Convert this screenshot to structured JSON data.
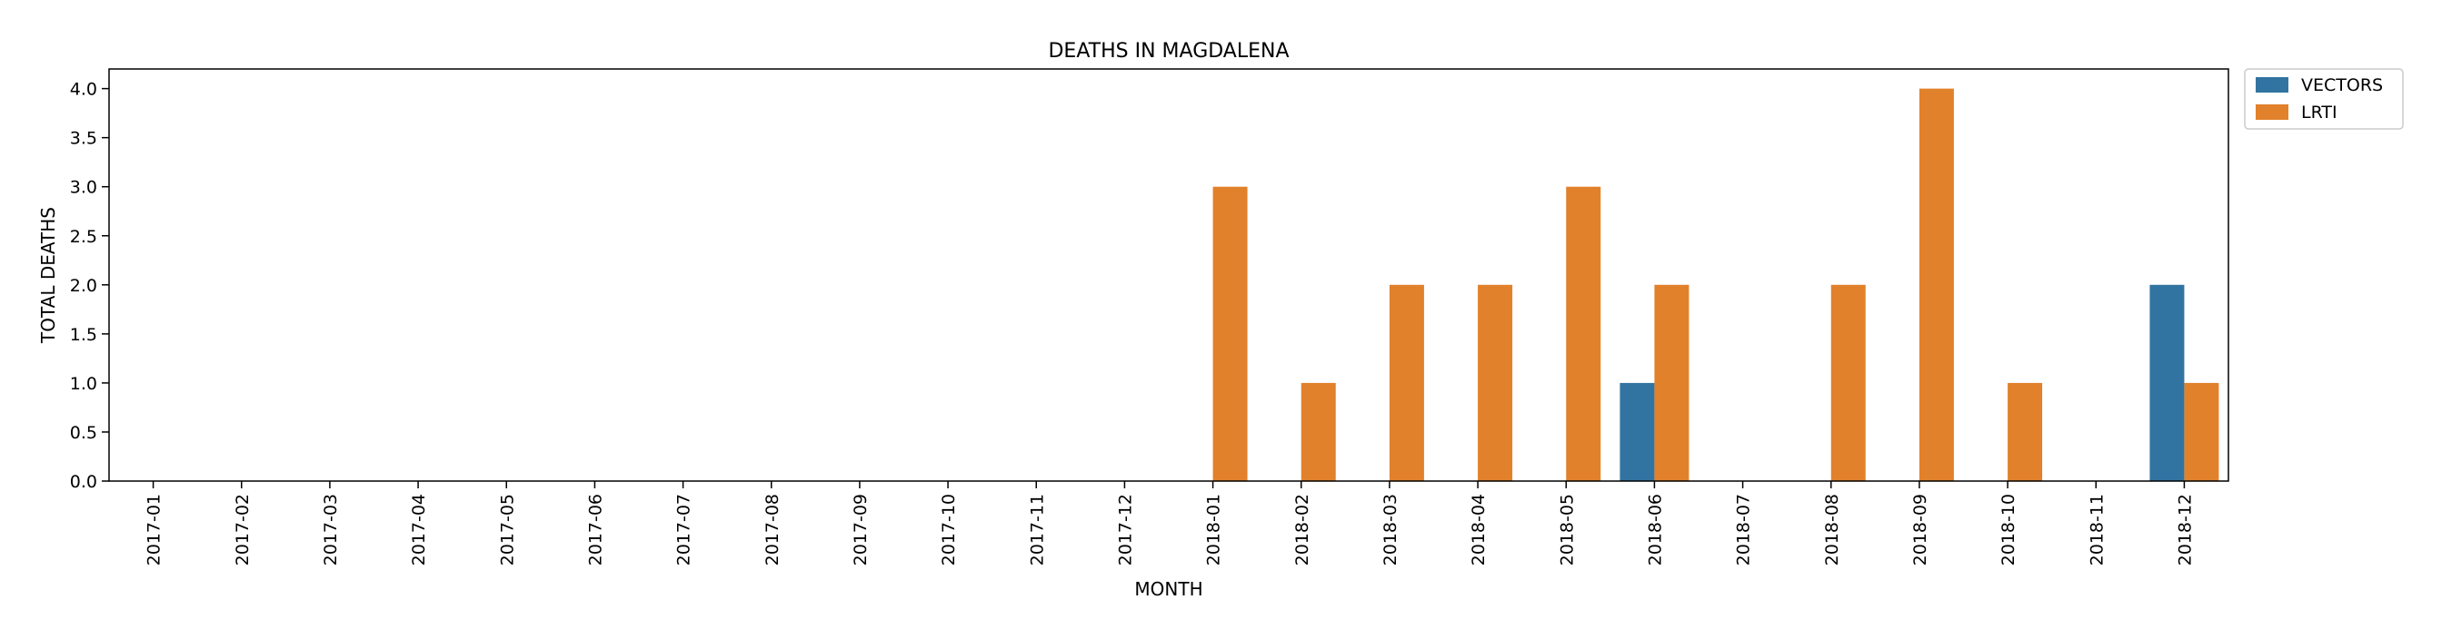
{
  "chart_data": {
    "type": "bar",
    "title": "DEATHS IN MAGDALENA",
    "xlabel": "MONTH",
    "ylabel": "TOTAL DEATHS",
    "ylim": [
      0,
      4.2
    ],
    "yticks": [
      "0.0",
      "0.5",
      "1.0",
      "1.5",
      "2.0",
      "2.5",
      "3.0",
      "3.5",
      "4.0"
    ],
    "categories": [
      "2017-01",
      "2017-02",
      "2017-03",
      "2017-04",
      "2017-05",
      "2017-06",
      "2017-07",
      "2017-08",
      "2017-09",
      "2017-10",
      "2017-11",
      "2017-12",
      "2018-01",
      "2018-02",
      "2018-03",
      "2018-04",
      "2018-05",
      "2018-06",
      "2018-07",
      "2018-08",
      "2018-09",
      "2018-10",
      "2018-11",
      "2018-12"
    ],
    "series": [
      {
        "name": "VECTORS",
        "color": "#3274a1",
        "values": [
          0,
          0,
          0,
          0,
          0,
          0,
          0,
          0,
          0,
          0,
          0,
          0,
          0,
          0,
          0,
          0,
          0,
          1,
          0,
          0,
          0,
          0,
          0,
          2
        ]
      },
      {
        "name": "LRTI",
        "color": "#e1812c",
        "values": [
          0,
          0,
          0,
          0,
          0,
          0,
          0,
          0,
          0,
          0,
          0,
          0,
          3,
          1,
          2,
          2,
          3,
          2,
          0,
          2,
          4,
          1,
          0,
          1
        ]
      }
    ],
    "legend_position": "outside top-right"
  }
}
